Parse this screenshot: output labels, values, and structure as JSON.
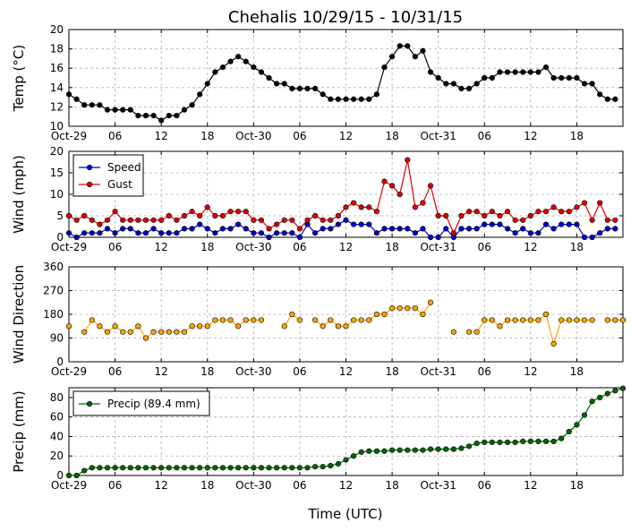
{
  "chart_data": {
    "title": "Chehalis 10/29/15 - 10/31/15",
    "xlabel": "Time (UTC)",
    "x_ticks": [
      "Oct-29",
      "06",
      "12",
      "18",
      "Oct-30",
      "06",
      "12",
      "18",
      "Oct-31",
      "06",
      "12",
      "18"
    ],
    "x_tick_hours": [
      0,
      6,
      12,
      18,
      24,
      30,
      36,
      42,
      48,
      54,
      60,
      66
    ],
    "x_range_hours": [
      0,
      72
    ],
    "panels": [
      {
        "type": "line",
        "ylabel": "Temp (°C)",
        "ylim": [
          10,
          20
        ],
        "yticks": [
          10,
          12,
          14,
          16,
          18,
          20
        ],
        "grid": true,
        "legend": null,
        "series": [
          {
            "color": "#000000",
            "values": [
              13.3,
              12.8,
              12.2,
              12.2,
              12.2,
              11.7,
              11.7,
              11.7,
              11.7,
              11.1,
              11.1,
              11.1,
              10.6,
              11.1,
              11.1,
              11.7,
              12.2,
              13.3,
              14.4,
              15.6,
              16.1,
              16.7,
              17.2,
              16.7,
              16.1,
              15.6,
              15.0,
              14.4,
              14.4,
              13.9,
              13.9,
              13.9,
              13.9,
              13.3,
              12.8,
              12.8,
              12.8,
              12.8,
              12.8,
              12.8,
              13.3,
              16.1,
              17.2,
              18.3,
              18.3,
              17.2,
              17.8,
              15.6,
              15.0,
              14.4,
              14.4,
              13.9,
              13.9,
              14.4,
              15.0,
              15.0,
              15.6,
              15.6,
              15.6,
              15.6,
              15.6,
              15.6,
              16.1,
              15.0,
              15.0,
              15.0,
              15.0,
              14.4,
              14.4,
              13.3,
              12.8,
              12.8
            ]
          }
        ]
      },
      {
        "type": "line",
        "ylabel": "Wind (mph)",
        "ylim": [
          0,
          20
        ],
        "yticks": [
          0,
          5,
          10,
          15,
          20
        ],
        "grid": true,
        "legend": "top-left",
        "series": [
          {
            "name": "Speed",
            "color": "#0000cc",
            "values": [
              1,
              0,
              1,
              1,
              1,
              2,
              1,
              2,
              2,
              1,
              1,
              2,
              1,
              1,
              1,
              2,
              2,
              3,
              2,
              1,
              2,
              2,
              3,
              2,
              1,
              1,
              0,
              1,
              1,
              1,
              0,
              3,
              1,
              2,
              2,
              3,
              4,
              3,
              3,
              3,
              1,
              2,
              2,
              2,
              2,
              1,
              2,
              0,
              0,
              2,
              0,
              2,
              2,
              2,
              3,
              3,
              3,
              2,
              1,
              2,
              1,
              1,
              3,
              2,
              3,
              3,
              3,
              0,
              0,
              1,
              2,
              2
            ]
          },
          {
            "name": "Gust",
            "color": "#dd0000",
            "values": [
              5,
              4,
              5,
              4,
              3,
              4,
              6,
              4,
              4,
              4,
              4,
              4,
              4,
              5,
              4,
              5,
              6,
              5,
              7,
              5,
              5,
              6,
              6,
              6,
              4,
              4,
              2,
              3,
              4,
              4,
              2,
              4,
              5,
              4,
              4,
              5,
              7,
              8,
              7,
              7,
              6,
              13,
              12,
              10,
              18,
              7,
              8,
              12,
              5,
              5,
              1,
              5,
              6,
              6,
              5,
              6,
              5,
              6,
              4,
              4,
              5,
              6,
              6,
              7,
              6,
              6,
              7,
              8,
              4,
              8,
              4,
              4
            ]
          }
        ]
      },
      {
        "type": "scatter",
        "ylabel": "Wind Direction",
        "ylim": [
          0,
          360
        ],
        "yticks": [
          0,
          90,
          180,
          270,
          360
        ],
        "grid": true,
        "legend": null,
        "series": [
          {
            "color": "#ffa500",
            "values": [
              135,
              null,
              113,
              158,
              135,
              113,
              135,
              113,
              113,
              135,
              90,
              113,
              113,
              113,
              113,
              113,
              135,
              135,
              135,
              158,
              158,
              158,
              135,
              158,
              158,
              158,
              null,
              null,
              135,
              180,
              158,
              null,
              158,
              135,
              158,
              135,
              135,
              158,
              158,
              158,
              180,
              180,
              203,
              203,
              203,
              203,
              180,
              225,
              null,
              null,
              113,
              null,
              113,
              113,
              158,
              158,
              135,
              158,
              158,
              158,
              158,
              158,
              180,
              68,
              158,
              158,
              158,
              158,
              158,
              null,
              158,
              158,
              158
            ]
          }
        ]
      },
      {
        "type": "line",
        "ylabel": "Precip (mm)",
        "ylim": [
          0,
          90
        ],
        "yticks": [
          0,
          20,
          40,
          60,
          80
        ],
        "grid": true,
        "legend": "top-left",
        "series": [
          {
            "name": "Precip (89.4 mm)",
            "color": "#006600",
            "values": [
              0,
              0,
              5,
              8,
              8,
              8,
              8,
              8,
              8,
              8,
              8,
              8,
              8,
              8,
              8,
              8,
              8,
              8,
              8,
              8,
              8,
              8,
              8,
              8,
              8,
              8,
              8,
              8,
              8,
              8,
              8,
              8,
              9,
              9,
              10,
              12,
              16,
              20,
              24,
              25,
              25,
              25,
              26,
              26,
              26,
              26,
              26,
              27,
              27,
              27,
              27,
              28,
              30,
              33,
              34,
              34,
              34,
              34,
              34,
              35,
              35,
              35,
              35,
              35,
              38,
              45,
              52,
              62,
              76,
              80,
              84,
              87,
              89.4
            ]
          }
        ]
      }
    ]
  }
}
